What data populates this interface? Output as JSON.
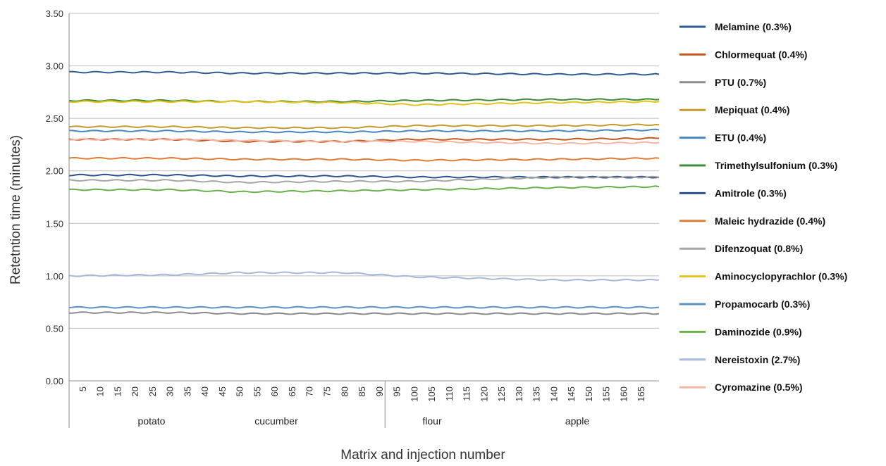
{
  "chart_data": {
    "type": "line",
    "title": "",
    "xlabel": "Matrix and injection number",
    "ylabel": "Retetntion time (minutes)",
    "ylim": [
      0,
      3.5
    ],
    "yticks": [
      "0.00",
      "0.50",
      "1.00",
      "1.50",
      "2.00",
      "2.50",
      "3.00",
      "3.50"
    ],
    "xlim": [
      1,
      170
    ],
    "xticks": [
      "5",
      "10",
      "15",
      "20",
      "25",
      "30",
      "35",
      "40",
      "45",
      "50",
      "55",
      "60",
      "65",
      "70",
      "75",
      "80",
      "85",
      "90",
      "95",
      "100",
      "105",
      "110",
      "115",
      "120",
      "125",
      "130",
      "135",
      "140",
      "145",
      "150",
      "155",
      "160",
      "165"
    ],
    "groups": [
      {
        "label": "potato"
      },
      {
        "label": "cucumber"
      },
      {
        "label": "flour"
      },
      {
        "label": "apple"
      }
    ],
    "grid": true,
    "legend_position": "right",
    "series": [
      {
        "name": "Melamine (0.3%)",
        "color": "#2e5a94",
        "values": [
          2.94,
          2.94,
          2.93,
          2.93,
          2.93,
          2.92,
          2.92
        ]
      },
      {
        "name": "Chlormequat (0.4%)",
        "color": "#c4571c",
        "values": [
          2.3,
          2.3,
          2.28,
          2.28,
          2.3,
          2.3,
          2.31
        ]
      },
      {
        "name": "PTU (0.7%)",
        "color": "#8a8a8a",
        "values": [
          0.65,
          0.65,
          0.64,
          0.64,
          0.64,
          0.64,
          0.64
        ]
      },
      {
        "name": "Mepiquat (0.4%)",
        "color": "#c69a2c",
        "values": [
          2.42,
          2.42,
          2.41,
          2.41,
          2.43,
          2.43,
          2.44
        ]
      },
      {
        "name": "ETU (0.4%)",
        "color": "#4a86c0",
        "values": [
          2.38,
          2.38,
          2.37,
          2.37,
          2.38,
          2.38,
          2.39
        ]
      },
      {
        "name": "Trimethylsulfonium (0.3%)",
        "color": "#3d8c37",
        "values": [
          2.67,
          2.67,
          2.66,
          2.66,
          2.67,
          2.68,
          2.68
        ]
      },
      {
        "name": "Amitrole (0.3%)",
        "color": "#2d5190",
        "values": [
          1.96,
          1.96,
          1.95,
          1.95,
          1.94,
          1.94,
          1.94
        ]
      },
      {
        "name": "Maleic hydrazide (0.4%)",
        "color": "#e07d35",
        "values": [
          2.12,
          2.12,
          2.11,
          2.11,
          2.1,
          2.11,
          2.12
        ]
      },
      {
        "name": "Difenzoquat (0.8%)",
        "color": "#a5a5a5",
        "values": [
          1.91,
          1.91,
          1.89,
          1.9,
          1.9,
          1.94,
          1.94
        ]
      },
      {
        "name": "Aminocyclopyrachlor (0.3%)",
        "color": "#e5c21a",
        "values": [
          2.66,
          2.66,
          2.66,
          2.65,
          2.63,
          2.65,
          2.66
        ]
      },
      {
        "name": "Propamocarb (0.3%)",
        "color": "#5c8fc8",
        "values": [
          0.7,
          0.7,
          0.7,
          0.7,
          0.7,
          0.7,
          0.7
        ]
      },
      {
        "name": "Daminozide (0.9%)",
        "color": "#6ab04c",
        "values": [
          1.82,
          1.82,
          1.8,
          1.81,
          1.82,
          1.84,
          1.85
        ]
      },
      {
        "name": "Nereistoxin (2.7%)",
        "color": "#a6b8da",
        "values": [
          1.0,
          1.01,
          1.03,
          1.03,
          0.99,
          0.96,
          0.96
        ]
      },
      {
        "name": "Cyromazine (0.5%)",
        "color": "#f2b8a5",
        "values": [
          2.3,
          2.3,
          2.29,
          2.28,
          2.28,
          2.26,
          2.27
        ]
      }
    ],
    "x": [
      1,
      30,
      50,
      80,
      100,
      140,
      170
    ]
  }
}
